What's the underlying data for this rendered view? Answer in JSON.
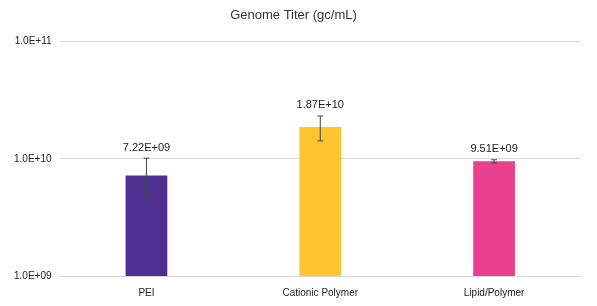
{
  "chart_data": {
    "type": "bar",
    "title": "Genome Titer (gc/mL)",
    "categories": [
      "PEI",
      "Cationic Polymer",
      "Lipid/Polymer"
    ],
    "values": [
      7220000000,
      18700000000,
      9510000000
    ],
    "value_labels": [
      "7.22E+09",
      "1.87E+10",
      "9.51E+09"
    ],
    "errors": [
      2900000000,
      4500000000,
      300000000
    ],
    "colors": [
      "#4e2f8f",
      "#ffc52f",
      "#e8408e"
    ],
    "log": "y",
    "ylim": [
      1000000000,
      100000000000
    ],
    "yticks": [
      {
        "value": 1000000000,
        "label": "1.0E+09"
      },
      {
        "value": 10000000000,
        "label": "1.0E+10"
      },
      {
        "value": 100000000000,
        "label": "1.0E+11"
      }
    ],
    "grid": true,
    "data_labels": true
  }
}
